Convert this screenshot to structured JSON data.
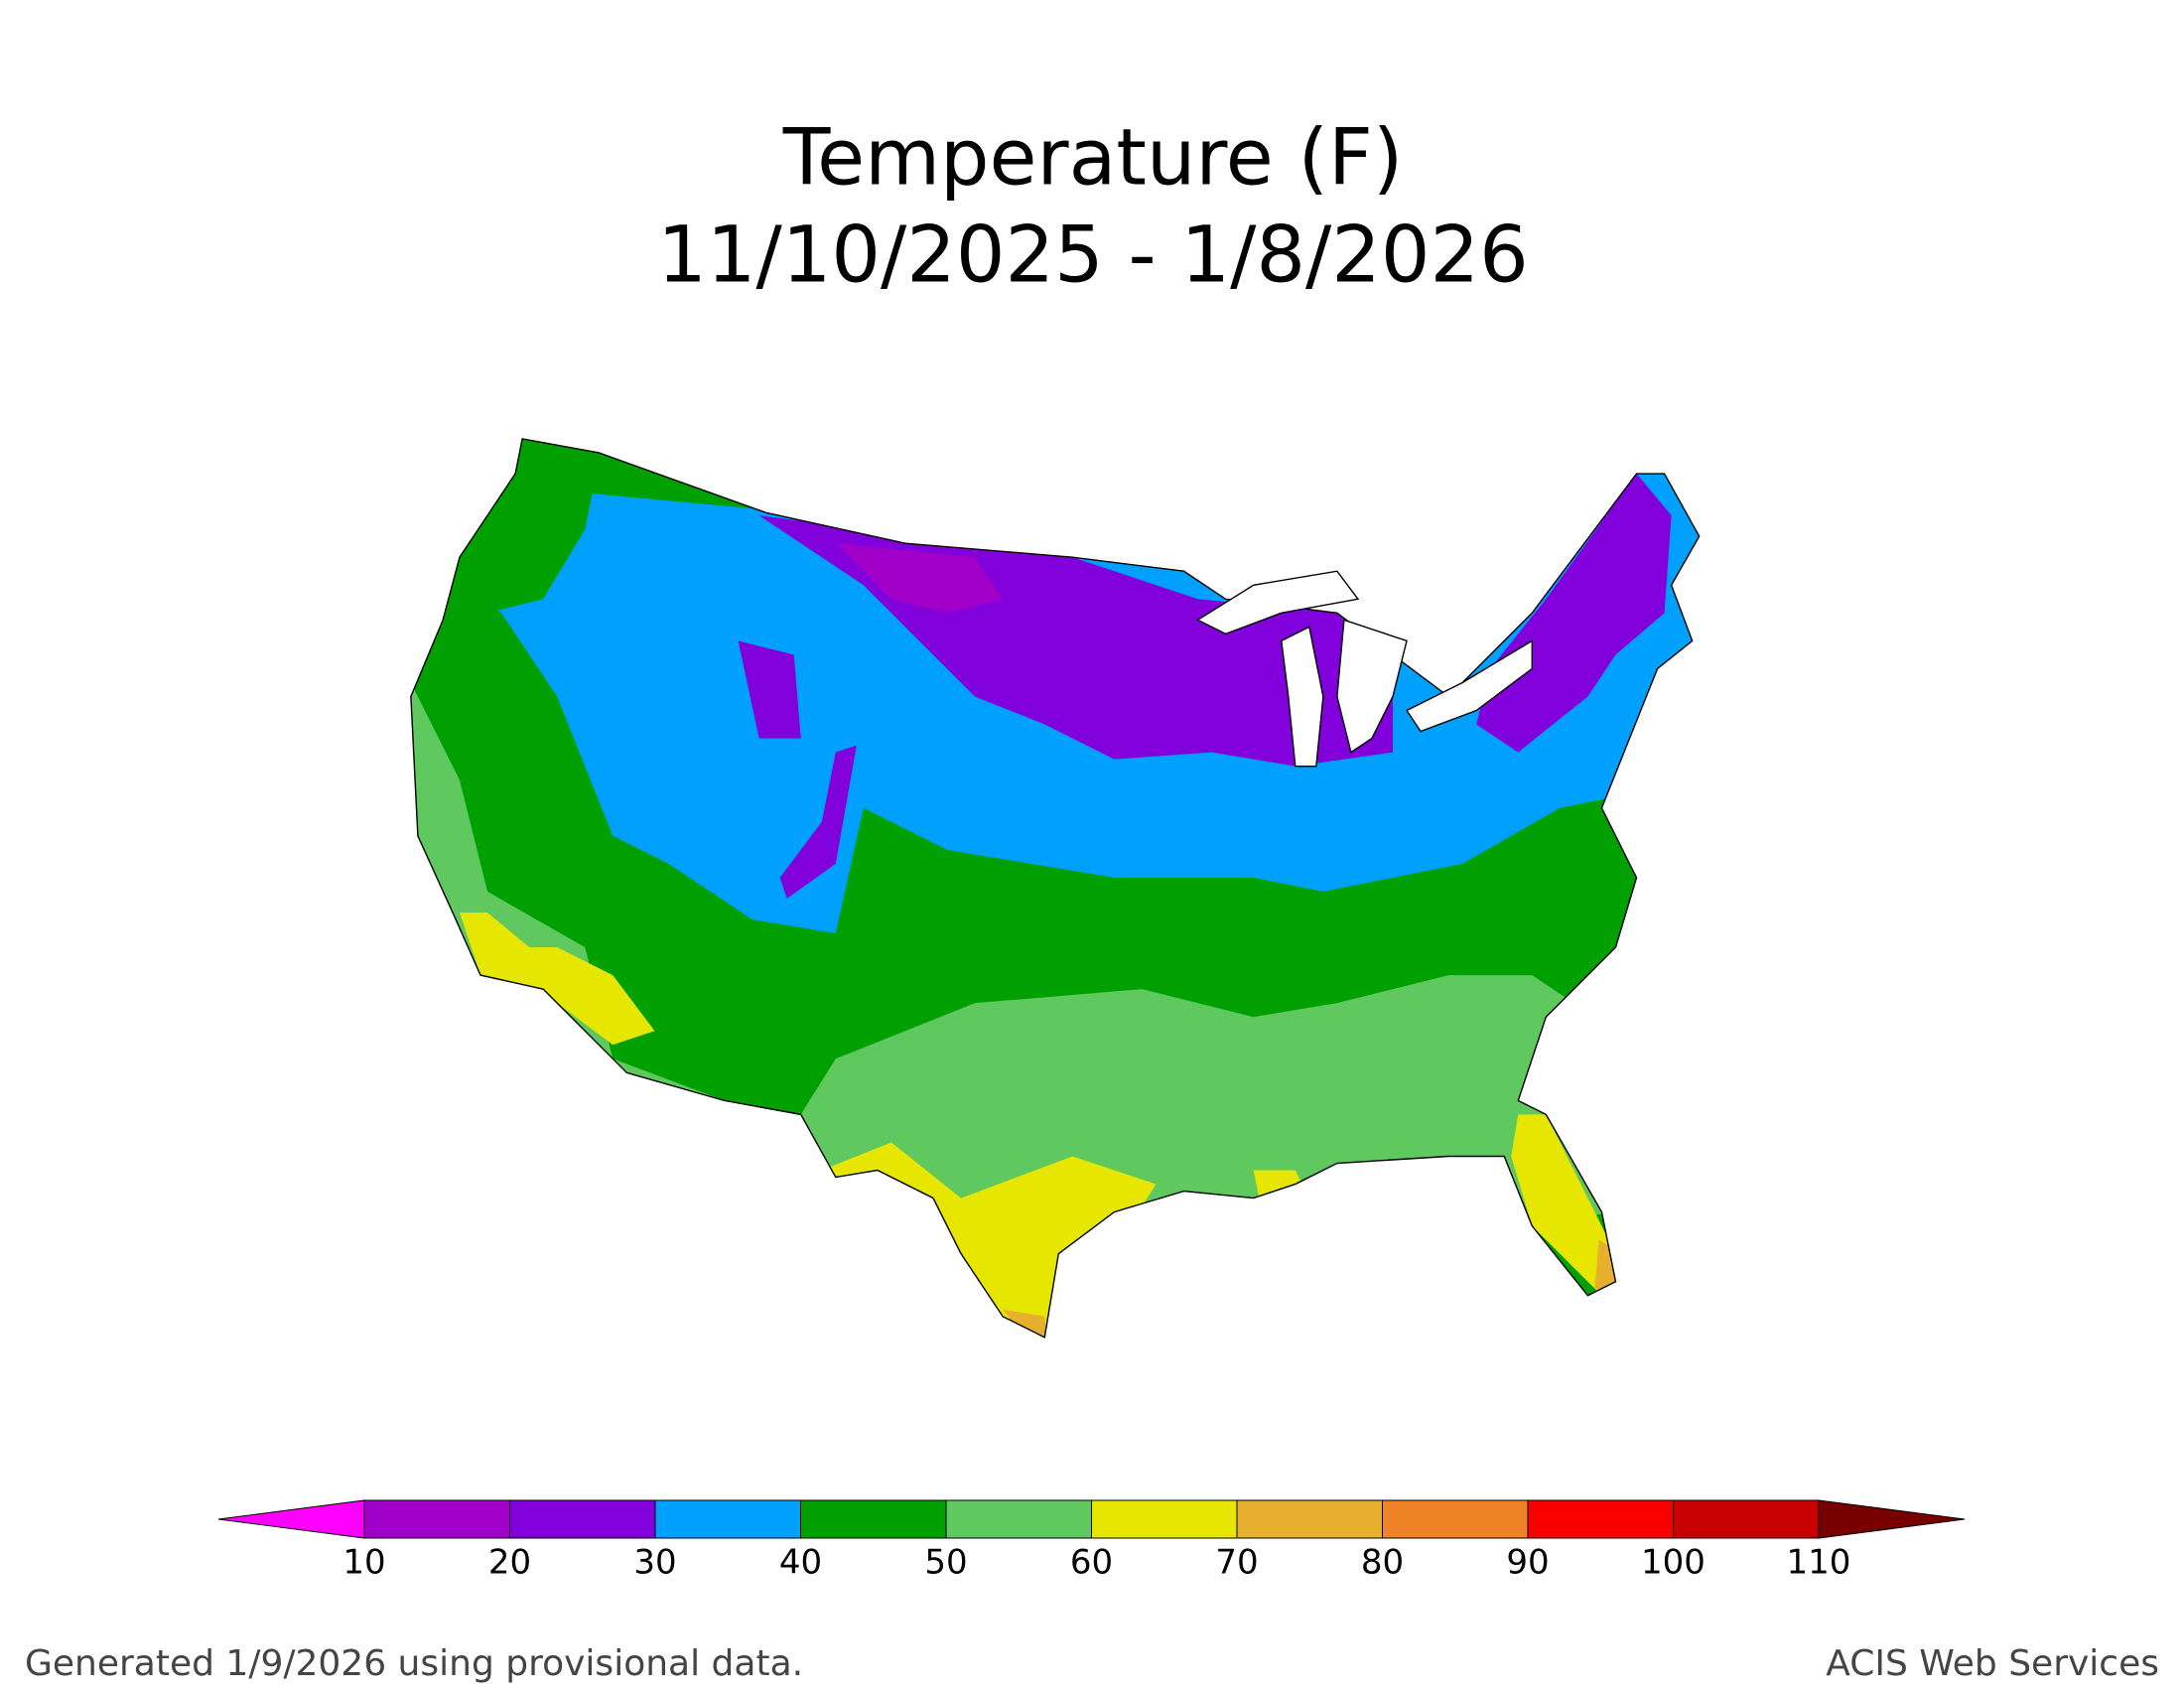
{
  "title": [
    "Temperature (F)",
    "11/10/2025 - 1/8/2026"
  ],
  "colorbar": {
    "ticks": [
      10,
      20,
      30,
      40,
      50,
      60,
      70,
      80,
      90,
      100,
      110
    ],
    "colors": [
      "#ff00ff",
      "#a000c8",
      "#8200dc",
      "#00a0ff",
      "#00a000",
      "#5fc85f",
      "#e6e600",
      "#e6af2d",
      "#f08228",
      "#fa0000",
      "#c80000",
      "#780000"
    ]
  },
  "footer": {
    "left": "Generated 1/9/2026 using provisional data.",
    "right": "ACIS Web Services"
  }
}
